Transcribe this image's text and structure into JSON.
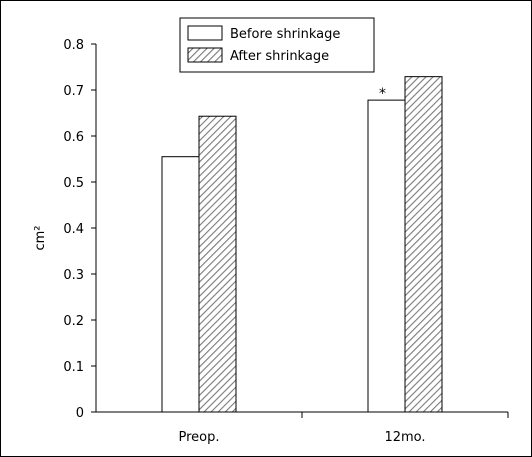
{
  "chart_data": {
    "type": "bar",
    "categories": [
      "Preop.",
      "12mo."
    ],
    "series": [
      {
        "name": "Before shrinkage",
        "values": [
          0.555,
          0.678
        ],
        "fill": "none"
      },
      {
        "name": "After shrinkage",
        "values": [
          0.643,
          0.729
        ],
        "fill": "hatched"
      }
    ],
    "ylabel": "cm²",
    "ylim": [
      0,
      0.8
    ],
    "yticks": [
      "0",
      "0.1",
      "0.2",
      "0.3",
      "0.4",
      "0.5",
      "0.6",
      "0.7",
      "0.8"
    ],
    "legend_position": "top-center",
    "grid": false,
    "annotations": [
      {
        "text": "*",
        "category": "12mo.",
        "series": "Before shrinkage"
      }
    ]
  },
  "colors": {
    "axis": "#000000",
    "bar_fill": "#ffffff",
    "hatch": "#7a7a7a"
  }
}
